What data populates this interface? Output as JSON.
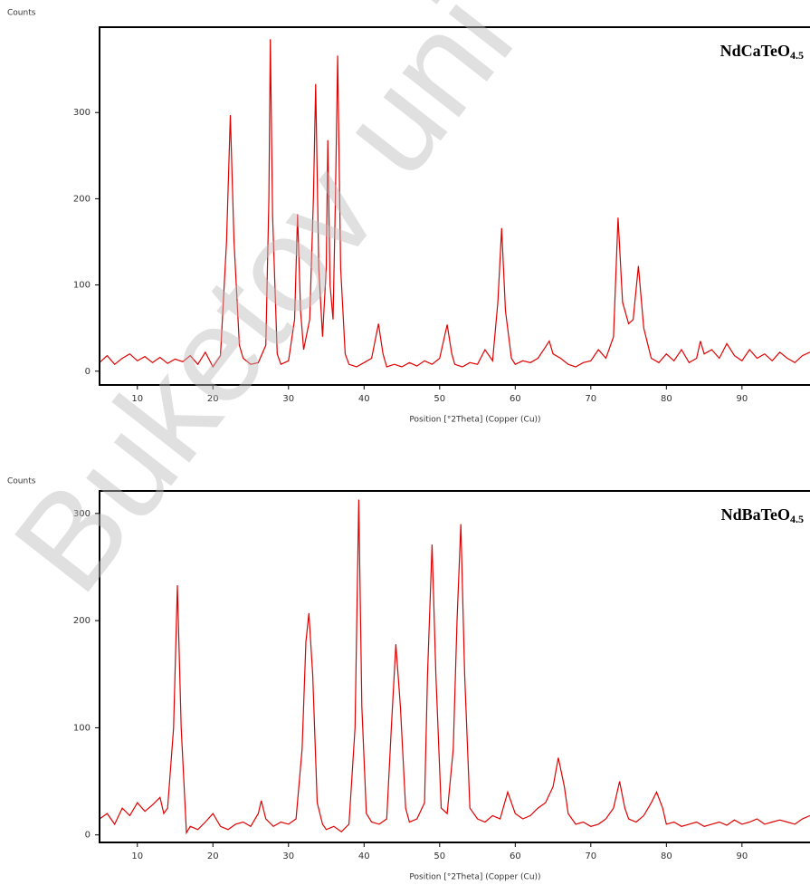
{
  "chart_data": [
    {
      "type": "line",
      "title": "NdCaTeO4.5",
      "ylabel": "Counts",
      "xlabel": "Position [°2Theta] (Copper (Cu))",
      "color": "#e00000",
      "xlim": [
        5,
        99
      ],
      "ylim": [
        -16,
        399
      ],
      "xticks": [
        10,
        20,
        30,
        40,
        50,
        60,
        70,
        80,
        90
      ],
      "yticks": [
        0,
        100,
        200,
        300
      ],
      "x": [
        5,
        6,
        7,
        8,
        9,
        10,
        11,
        12,
        13,
        14,
        15,
        16,
        17,
        18,
        19,
        20,
        21,
        21.8,
        22.3,
        22.8,
        23.5,
        24,
        25,
        26,
        27,
        27.4,
        27.6,
        27.9,
        28.5,
        29,
        30,
        30.8,
        31.2,
        31.6,
        32,
        32.8,
        33.3,
        33.6,
        34,
        34.5,
        35,
        35.2,
        35.5,
        35.9,
        36.2,
        36.5,
        36.9,
        37.5,
        38,
        39,
        40,
        41,
        41.9,
        42.5,
        43,
        44,
        45,
        46,
        47,
        48,
        49,
        50,
        51,
        51.6,
        52,
        53,
        54,
        55,
        56,
        57,
        57.7,
        58.2,
        58.7,
        59.5,
        60,
        61,
        62,
        63,
        64,
        64.5,
        65,
        66,
        67,
        68,
        69,
        70,
        71,
        72,
        73,
        73.6,
        74.2,
        75,
        75.6,
        76.3,
        77,
        78,
        79,
        80,
        81,
        82,
        83,
        84,
        84.5,
        85,
        86,
        87,
        88,
        89,
        90,
        91,
        92,
        93,
        94,
        95,
        96,
        97,
        98,
        99
      ],
      "values": [
        10,
        18,
        8,
        15,
        20,
        12,
        17,
        10,
        16,
        9,
        14,
        11,
        18,
        8,
        22,
        5,
        18,
        150,
        297,
        150,
        30,
        15,
        8,
        10,
        30,
        200,
        385,
        180,
        20,
        8,
        12,
        60,
        182,
        70,
        25,
        60,
        200,
        333,
        120,
        40,
        120,
        268,
        100,
        60,
        200,
        366,
        120,
        20,
        8,
        5,
        10,
        15,
        55,
        20,
        5,
        8,
        5,
        10,
        6,
        12,
        8,
        15,
        54,
        20,
        8,
        5,
        10,
        8,
        25,
        12,
        80,
        166,
        70,
        15,
        8,
        12,
        10,
        15,
        28,
        35,
        20,
        15,
        8,
        5,
        10,
        12,
        25,
        15,
        40,
        178,
        80,
        55,
        60,
        122,
        50,
        15,
        10,
        20,
        12,
        25,
        10,
        15,
        35,
        20,
        25,
        15,
        32,
        18,
        12,
        25,
        15,
        20,
        12,
        22,
        15,
        10,
        18,
        22
      ]
    },
    {
      "type": "line",
      "title": "NdBaTeO4.5",
      "ylabel": "Counts",
      "xlabel": "Position [°2Theta] (Copper (Cu))",
      "color": "#e00000",
      "xlim": [
        5,
        99
      ],
      "ylim": [
        -7,
        321
      ],
      "xticks": [
        10,
        20,
        30,
        40,
        50,
        60,
        70,
        80,
        90
      ],
      "yticks": [
        0,
        100,
        200,
        300
      ],
      "x": [
        5,
        6,
        7,
        8,
        9,
        10,
        11,
        12,
        13,
        13.5,
        14,
        14.8,
        15.3,
        15.8,
        16.5,
        17,
        18,
        19,
        20,
        21,
        22,
        23,
        24,
        25,
        26,
        26.4,
        27,
        28,
        29,
        30,
        31,
        31.8,
        32.3,
        32.7,
        33.2,
        33.8,
        34.5,
        35,
        36,
        37,
        38,
        38.8,
        39.3,
        39.7,
        40.3,
        41,
        42,
        43,
        43.6,
        44.2,
        44.8,
        45.5,
        46,
        47,
        48,
        48.4,
        49,
        49.5,
        50.2,
        51,
        51.8,
        52.3,
        52.8,
        53.3,
        54,
        55,
        56,
        57,
        58,
        59,
        60,
        61,
        62,
        63,
        64,
        65,
        65.7,
        66.5,
        67,
        68,
        69,
        70,
        71,
        72,
        73,
        73.8,
        74.5,
        75,
        76,
        77,
        78,
        78.7,
        79.5,
        80,
        81,
        82,
        83,
        84,
        85,
        86,
        87,
        88,
        89,
        90,
        91,
        92,
        93,
        94,
        95,
        96,
        97,
        98,
        99
      ],
      "values": [
        15,
        20,
        10,
        25,
        18,
        30,
        22,
        28,
        35,
        20,
        25,
        100,
        233,
        100,
        2,
        8,
        5,
        12,
        20,
        8,
        5,
        10,
        12,
        8,
        20,
        32,
        15,
        8,
        12,
        10,
        15,
        80,
        180,
        207,
        150,
        30,
        10,
        5,
        8,
        3,
        10,
        100,
        313,
        120,
        20,
        12,
        10,
        15,
        100,
        178,
        120,
        25,
        12,
        15,
        30,
        150,
        271,
        150,
        25,
        20,
        80,
        200,
        290,
        150,
        25,
        15,
        12,
        18,
        15,
        40,
        20,
        15,
        18,
        25,
        30,
        45,
        72,
        45,
        20,
        10,
        12,
        8,
        10,
        15,
        25,
        50,
        25,
        15,
        12,
        18,
        30,
        40,
        25,
        10,
        12,
        8,
        10,
        12,
        8,
        10,
        12,
        9,
        14,
        10,
        12,
        15,
        10,
        12,
        14,
        12,
        10,
        15,
        18
      ]
    }
  ],
  "watermark": "Buketov uni"
}
